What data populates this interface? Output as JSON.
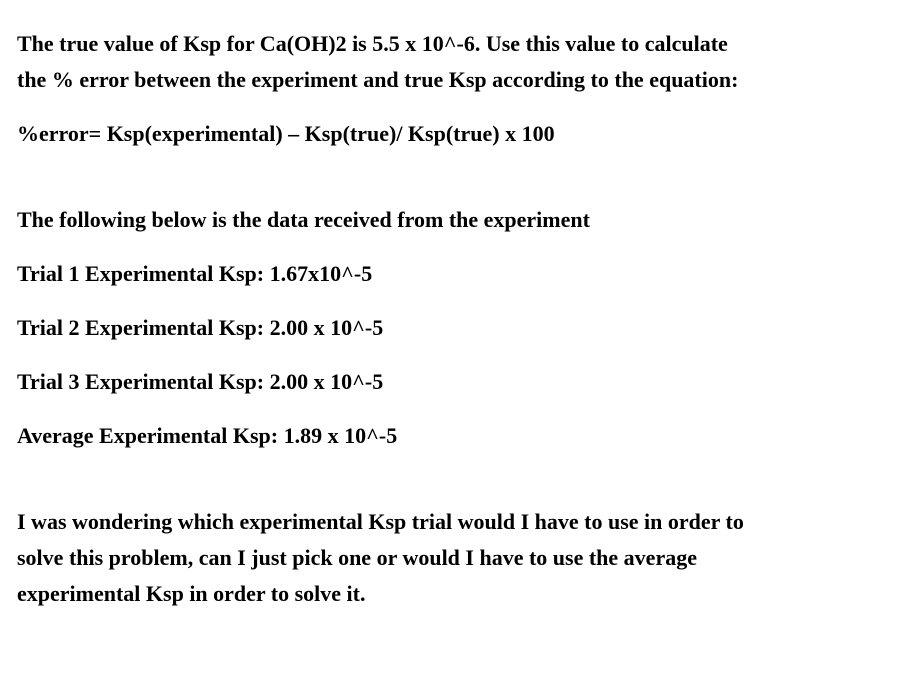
{
  "page": {
    "background_color": "#ffffff",
    "text_color": "#000000"
  },
  "document": {
    "intro": {
      "lines": [
        "The true value of Ksp for Ca(OH)2 is 5.5 x 10^-6. Use this value to calculate",
        "the % error between the experiment and true Ksp according to the equation:"
      ]
    },
    "equation": "%error= Ksp(experimental) – Ksp(true)/ Ksp(true) x 100",
    "data_intro": "The following below is the data received from the experiment",
    "trials": [
      {
        "label": "Trial 1 Experimental Ksp: 1.67x10^-5"
      },
      {
        "label": "Trial 2 Experimental Ksp: 2.00 x 10^-5"
      },
      {
        "label": "Trial 3 Experimental Ksp: 2.00 x 10^-5"
      },
      {
        "label": "Average Experimental Ksp: 1.89 x 10^-5"
      }
    ],
    "question": {
      "lines": [
        "I was wondering which experimental Ksp trial would I have to use in order to",
        "solve this problem, can I just pick one or would I have to use the average",
        "experimental Ksp in order to solve it."
      ]
    }
  }
}
